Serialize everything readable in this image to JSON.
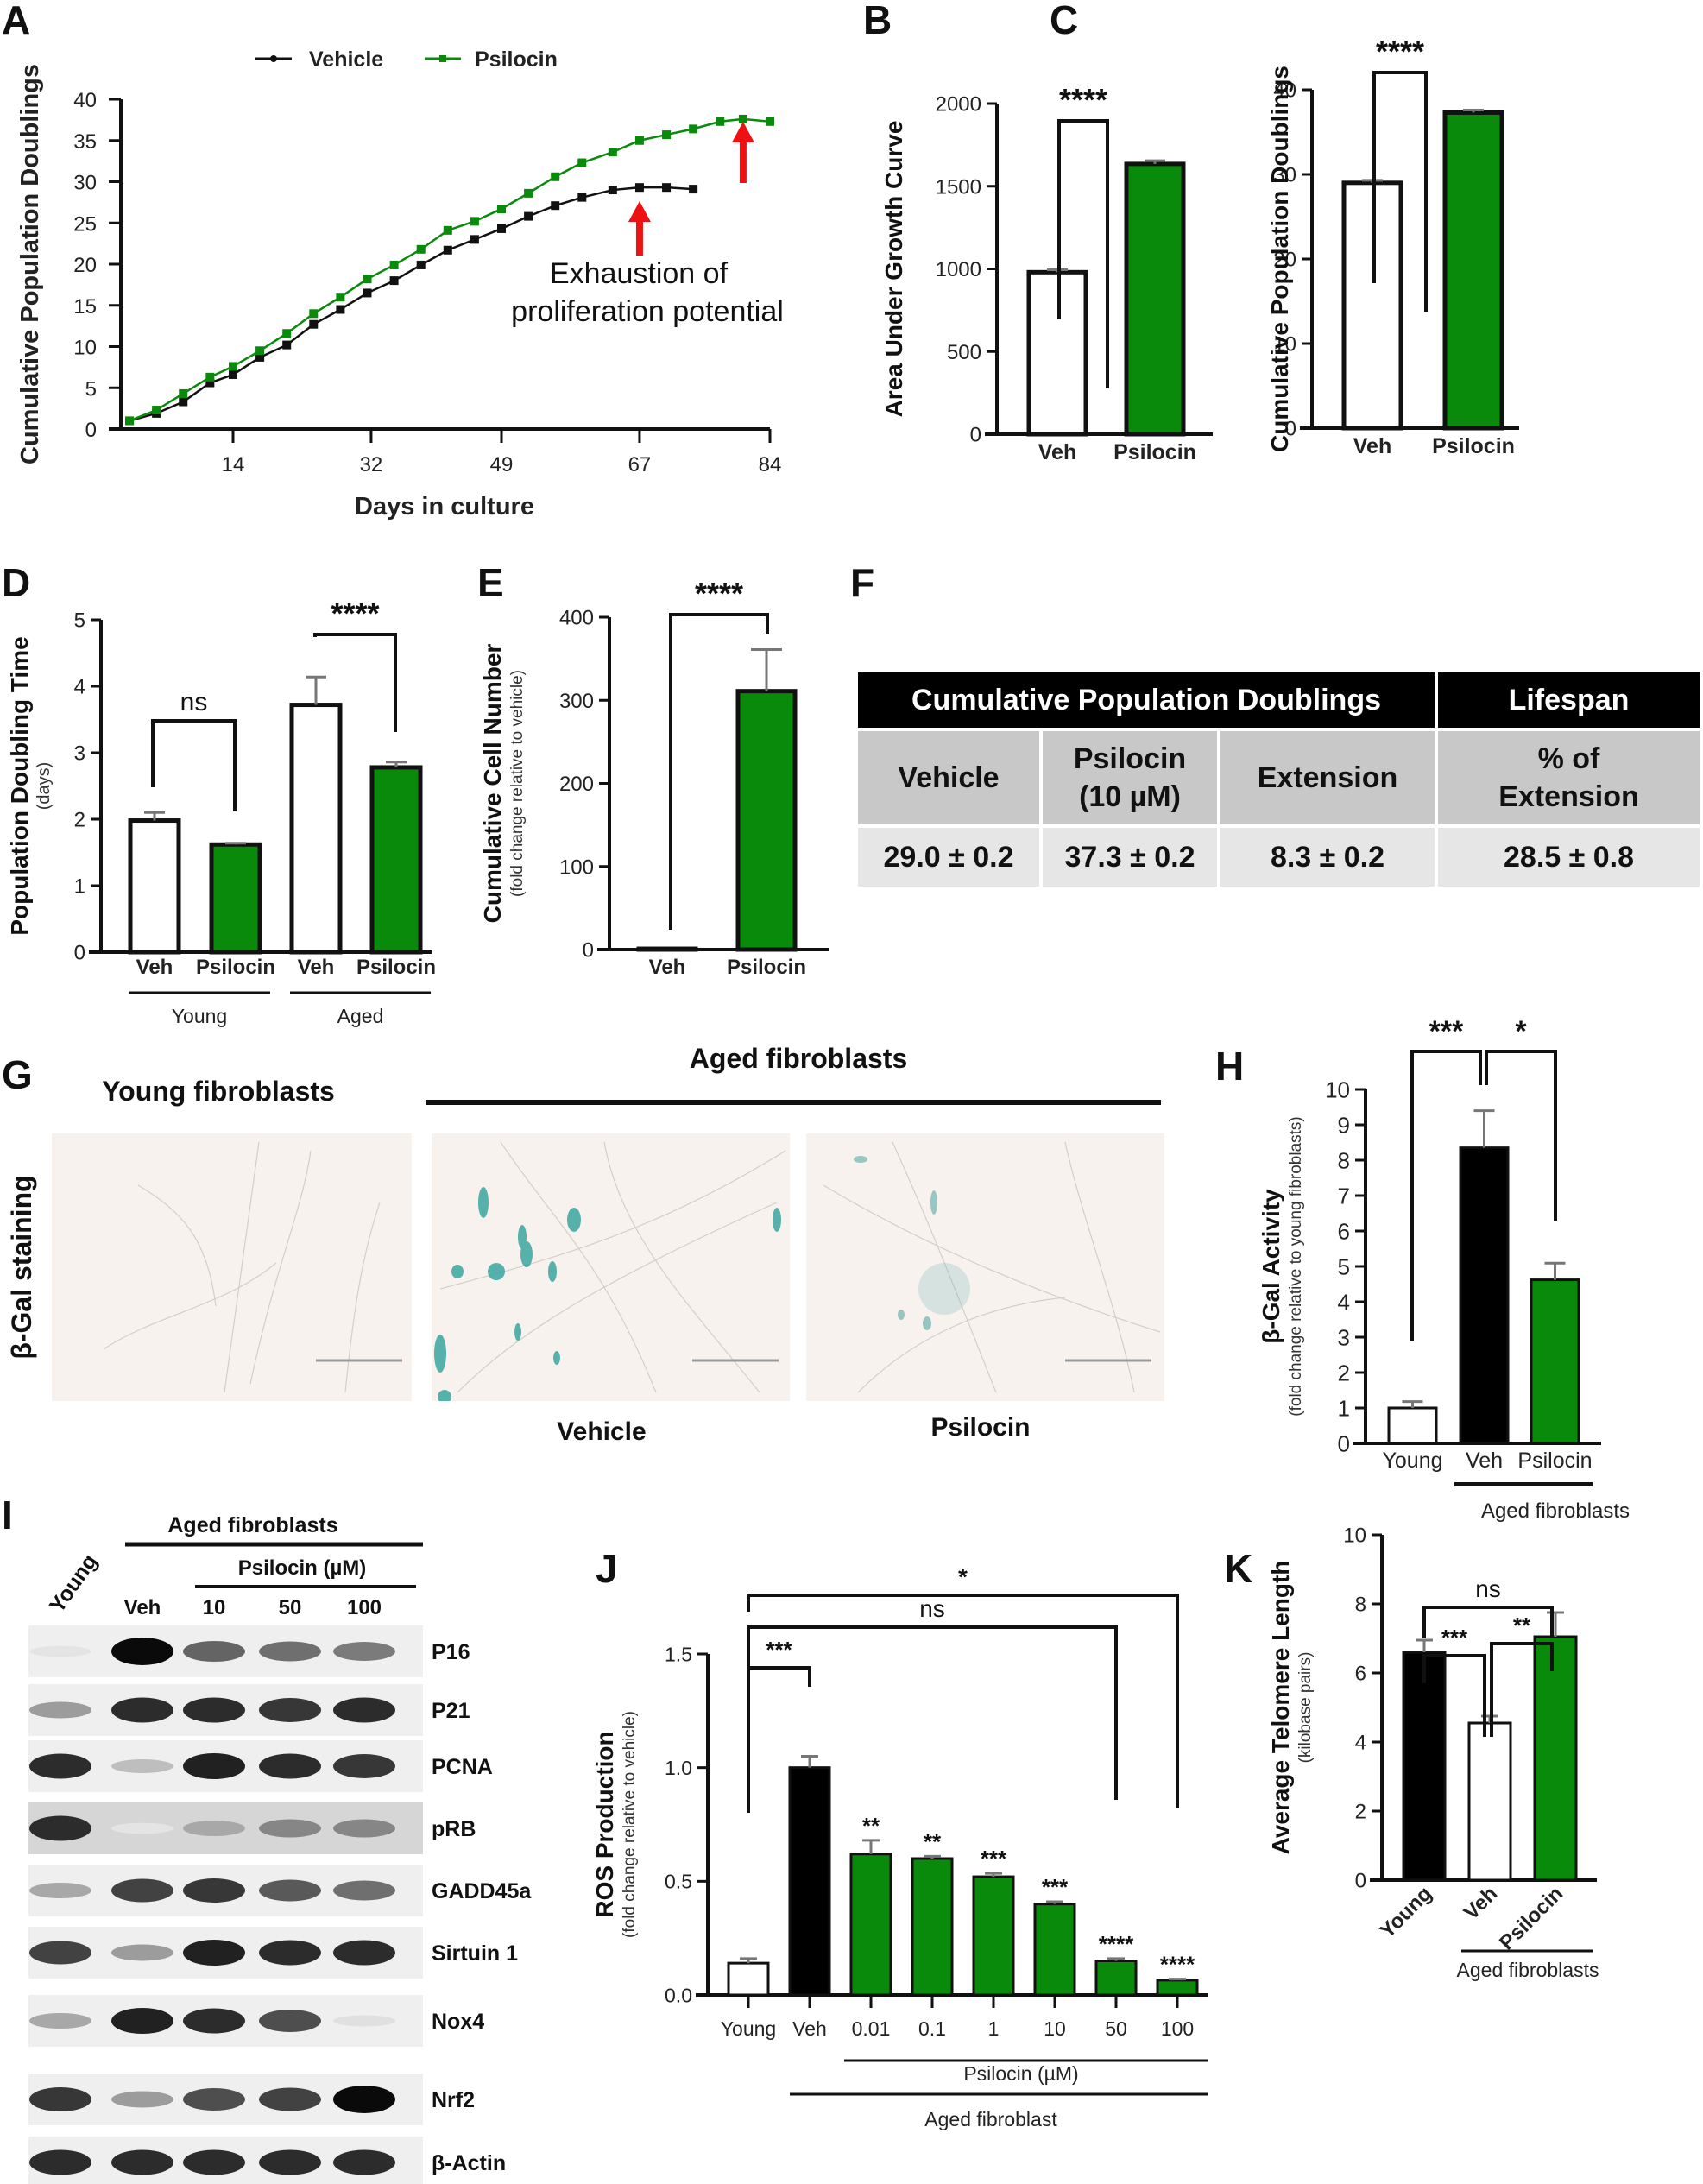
{
  "panels": {
    "A": "A",
    "B": "B",
    "C": "C",
    "D": "D",
    "E": "E",
    "F": "F",
    "G": "G",
    "H": "H",
    "I": "I",
    "J": "J",
    "K": "K"
  },
  "colors": {
    "vehicle": "#111111",
    "psilocin": "#0a8a0a",
    "arrow": "#ee1111",
    "young": "#ffffff",
    "black_bar": "#000000"
  },
  "chart_data": [
    {
      "id": "A",
      "type": "line",
      "title": "",
      "xlabel": "Days in culture",
      "ylabel": "Cumulative Population Doublings",
      "xticks": [
        14,
        32,
        49,
        67,
        84
      ],
      "yticks": [
        0,
        5,
        10,
        15,
        20,
        25,
        30,
        35,
        40
      ],
      "xlim": [
        0,
        84
      ],
      "ylim": [
        0,
        40
      ],
      "legend": {
        "position": "top",
        "entries": [
          "Vehicle",
          "Psilocin"
        ]
      },
      "annotation": {
        "line1": "Exhaustion of",
        "line2": "proliferation potential"
      },
      "arrows_at_day": [
        67,
        80.5
      ],
      "series": [
        {
          "name": "Vehicle",
          "x": [
            0.5,
            4,
            7.5,
            11,
            14,
            17.5,
            21,
            24.5,
            28,
            31.5,
            35,
            38.5,
            42,
            45.5,
            49,
            52.5,
            56,
            59.5,
            63.5,
            67,
            70.5,
            74
          ],
          "y": [
            1.0,
            1.9,
            3.3,
            5.6,
            6.6,
            8.7,
            10.2,
            12.7,
            14.5,
            16.5,
            18.0,
            19.9,
            21.7,
            23.0,
            24.3,
            25.8,
            27.1,
            28.1,
            29.0,
            29.3,
            29.3,
            29.1
          ]
        },
        {
          "name": "Psilocin",
          "x": [
            0.5,
            4,
            7.5,
            11,
            14,
            17.5,
            21,
            24.5,
            28,
            31.5,
            35,
            38.5,
            42,
            45.5,
            49,
            52.5,
            56,
            59.5,
            63.5,
            67,
            70.5,
            74,
            77.5,
            80.5,
            84
          ],
          "y": [
            1.0,
            2.3,
            4.3,
            6.3,
            7.6,
            9.5,
            11.6,
            14.0,
            16.0,
            18.2,
            19.9,
            21.8,
            24.1,
            25.2,
            26.7,
            28.6,
            30.6,
            32.3,
            33.6,
            35.0,
            35.7,
            36.4,
            37.3,
            37.6,
            37.3
          ]
        }
      ]
    },
    {
      "id": "B",
      "type": "bar",
      "categories": [
        "Veh",
        "Psilocin"
      ],
      "values": [
        980,
        1635
      ],
      "errors": [
        15,
        20
      ],
      "fills": [
        "#ffffff",
        "#0a8a0a"
      ],
      "ylabel": "Area Under Growth Curve",
      "yticks": [
        0,
        500,
        1000,
        1500,
        2000
      ],
      "ylim": [
        0,
        2000
      ],
      "significance": [
        {
          "from": 0,
          "to": 1,
          "label": "****"
        }
      ]
    },
    {
      "id": "C",
      "type": "bar",
      "categories": [
        "Veh",
        "Psilocin"
      ],
      "values": [
        29.0,
        37.3
      ],
      "errors": [
        0.3,
        0.3
      ],
      "fills": [
        "#ffffff",
        "#0a8a0a"
      ],
      "ylabel": "Cumulative Population Doublings",
      "yticks": [
        0,
        10,
        20,
        30,
        40
      ],
      "ylim": [
        0,
        40
      ],
      "significance": [
        {
          "from": 0,
          "to": 1,
          "label": "****"
        }
      ]
    },
    {
      "id": "D",
      "type": "bar",
      "categories": [
        "Veh",
        "Psilocin",
        "Veh",
        "Psilocin"
      ],
      "groups": [
        {
          "label": "Young",
          "span": [
            0,
            1
          ]
        },
        {
          "label": "Aged",
          "span": [
            2,
            3
          ]
        }
      ],
      "values": [
        1.98,
        1.62,
        3.72,
        2.78
      ],
      "errors": [
        0.12,
        0.02,
        0.42,
        0.08
      ],
      "fills": [
        "#ffffff",
        "#0a8a0a",
        "#ffffff",
        "#0a8a0a"
      ],
      "ylabel": "Population Doubling Time",
      "ylabel_sub": "(days)",
      "yticks": [
        0,
        1,
        2,
        3,
        4,
        5
      ],
      "ylim": [
        0,
        5
      ],
      "significance": [
        {
          "from": 0,
          "to": 1,
          "label": "ns"
        },
        {
          "from": 2,
          "to": 3,
          "label": "****"
        }
      ]
    },
    {
      "id": "E",
      "type": "bar",
      "categories": [
        "Veh",
        "Psilocin"
      ],
      "values": [
        1,
        311
      ],
      "errors": [
        0,
        50
      ],
      "fills": [
        "#ffffff",
        "#0a8a0a"
      ],
      "ylabel": "Cumulative Cell Number",
      "ylabel_sub": "(fold change relative to vehicle)",
      "yticks": [
        0,
        100,
        200,
        300,
        400
      ],
      "ylim": [
        0,
        400
      ],
      "significance": [
        {
          "from": 0,
          "to": 1,
          "label": "****"
        }
      ]
    },
    {
      "id": "H",
      "type": "bar",
      "categories": [
        "Young",
        "Veh",
        "Psilocin"
      ],
      "groups": [
        {
          "label": "Aged fibroblasts",
          "span": [
            1,
            2
          ]
        }
      ],
      "values": [
        1.0,
        8.35,
        4.62
      ],
      "errors": [
        0.18,
        1.05,
        0.47
      ],
      "fills": [
        "#ffffff",
        "#000000",
        "#0a8a0a"
      ],
      "ylabel": "β-Gal Activity",
      "ylabel_sub": "(fold change relative to young fibroblasts)",
      "yticks": [
        0,
        1,
        2,
        3,
        4,
        5,
        6,
        7,
        8,
        9,
        10
      ],
      "ylim": [
        0,
        10
      ],
      "significance": [
        {
          "from": 0,
          "to": 1,
          "label": "***"
        },
        {
          "from": 1,
          "to": 2,
          "label": "*"
        }
      ]
    },
    {
      "id": "J",
      "type": "bar",
      "categories": [
        "Young",
        "Veh",
        "0.01",
        "0.1",
        "1",
        "10",
        "50",
        "100"
      ],
      "groups": [
        {
          "label": "Psilocin (µM)",
          "span": [
            2,
            7
          ]
        },
        {
          "label": "Aged fibroblast",
          "span": [
            1,
            7
          ]
        }
      ],
      "values": [
        0.14,
        1.0,
        0.62,
        0.6,
        0.52,
        0.4,
        0.15,
        0.065
      ],
      "errors": [
        0.02,
        0.05,
        0.06,
        0.01,
        0.015,
        0.01,
        0.01,
        0.005
      ],
      "fills": [
        "#ffffff",
        "#000000",
        "#0a8a0a",
        "#0a8a0a",
        "#0a8a0a",
        "#0a8a0a",
        "#0a8a0a",
        "#0a8a0a"
      ],
      "bar_labels": [
        "",
        "",
        "**",
        "**",
        "***",
        "***",
        "****",
        "****"
      ],
      "ylabel": "ROS Production",
      "ylabel_sub": "(fold change relative to vehicle)",
      "yticks": [
        "0.0",
        "0.5",
        "1.0",
        "1.5"
      ],
      "ylim": [
        0,
        1.5
      ],
      "significance": [
        {
          "from": 0,
          "to": 1,
          "label": "***"
        },
        {
          "from": 0,
          "to": 6,
          "label": "ns"
        },
        {
          "from": 0,
          "to": 7,
          "label": "*"
        }
      ]
    },
    {
      "id": "K",
      "type": "bar",
      "categories": [
        "Young",
        "Veh",
        "Psilocin"
      ],
      "groups": [
        {
          "label": "Aged fibroblasts",
          "span": [
            1,
            2
          ]
        }
      ],
      "values": [
        6.6,
        4.55,
        7.05
      ],
      "errors": [
        0.35,
        0.2,
        0.7
      ],
      "fills": [
        "#000000",
        "#ffffff",
        "#0a8a0a"
      ],
      "ylabel": "Average Telomere Length",
      "ylabel_sub": "(kilobase pairs)",
      "yticks": [
        0,
        2,
        4,
        6,
        8,
        10
      ],
      "ylim": [
        0,
        10
      ],
      "significance": [
        {
          "from": 0,
          "to": 1,
          "label": "***"
        },
        {
          "from": 1,
          "to": 2,
          "label": "**"
        },
        {
          "from": 0,
          "to": 2,
          "label": "ns"
        }
      ]
    }
  ],
  "table_F": {
    "header": [
      "Cumulative Population Doublings",
      "Lifespan"
    ],
    "columns": [
      "Vehicle",
      "Psilocin",
      "(10 µM)",
      "Extension",
      "% of",
      "Extension"
    ],
    "values": [
      "29.0 ± 0.2",
      "37.3 ± 0.2",
      "8.3 ± 0.2",
      "28.5 ± 0.8"
    ]
  },
  "panel_G": {
    "young_title": "Young fibroblasts",
    "aged_title": "Aged fibroblasts",
    "row_label": "β-Gal staining",
    "captions": [
      "Vehicle",
      "Psilocin"
    ]
  },
  "panel_I": {
    "aged_title": "Aged fibroblasts",
    "psilocin_title": "Psilocin (µM)",
    "young_label": "Young",
    "lanes": [
      "Veh",
      "10",
      "50",
      "100"
    ],
    "proteins": [
      "P16",
      "P21",
      "PCNA",
      "pRB",
      "GADD45a",
      "Sirtuin 1",
      "Nox4",
      "Nrf2",
      "β-Actin"
    ],
    "band_intensity": [
      [
        0.03,
        1.0,
        0.6,
        0.55,
        0.5
      ],
      [
        0.35,
        0.85,
        0.85,
        0.8,
        0.85
      ],
      [
        0.85,
        0.2,
        0.9,
        0.85,
        0.8
      ],
      [
        0.85,
        0.03,
        0.3,
        0.45,
        0.45
      ],
      [
        0.3,
        0.75,
        0.8,
        0.65,
        0.55
      ],
      [
        0.75,
        0.35,
        0.9,
        0.85,
        0.85
      ],
      [
        0.3,
        0.9,
        0.85,
        0.7,
        0.05
      ],
      [
        0.8,
        0.35,
        0.7,
        0.75,
        1.0
      ],
      [
        0.85,
        0.85,
        0.85,
        0.85,
        0.85
      ]
    ]
  }
}
